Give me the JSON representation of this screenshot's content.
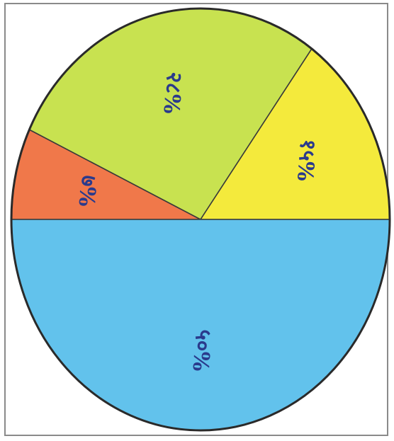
{
  "chart_data": {
    "type": "pie",
    "slices": [
      {
        "label": "७%",
        "value": 7,
        "color": "#f0784a",
        "text_color": "#2a3a8c"
      },
      {
        "label": "२८%",
        "value": 28,
        "color": "#c8e250",
        "text_color": "#2a3a8c"
      },
      {
        "label": "१५%",
        "value": 15,
        "color": "#f4ea3c",
        "text_color": "#2a3a8c"
      },
      {
        "label": "५०%",
        "value": 50,
        "color": "#62c2ec",
        "text_color": "#2a3a8c"
      }
    ],
    "title": "",
    "legend": "none"
  }
}
